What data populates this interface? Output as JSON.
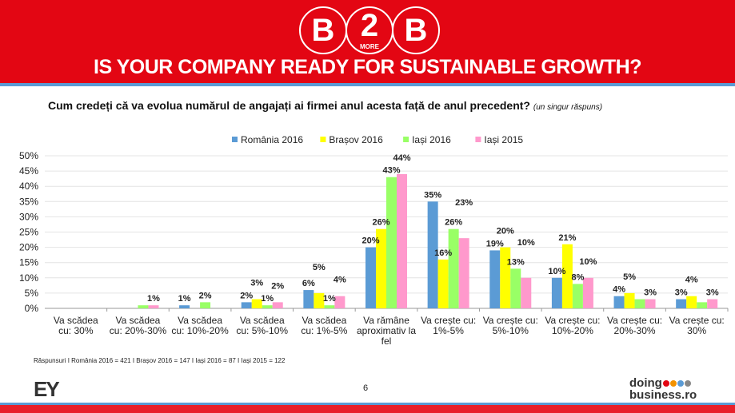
{
  "header": {
    "logo_text": [
      "B",
      "2",
      "B"
    ],
    "logo_small": "MORE",
    "headline": "IS YOUR COMPANY READY FOR SUSTAINABLE GROWTH?"
  },
  "question": "Cum credeți că va evolua numărul de angajați ai firmei anul acesta față de anul precedent?",
  "question_note": "(un singur răspuns)",
  "chart_data": {
    "type": "bar",
    "categories": [
      "Va scădea cu: 30%",
      "Va scădea cu: 20%-30%",
      "Va scădea cu: 10%-20%",
      "Va scădea cu: 5%-10%",
      "Va scădea cu: 1%-5%",
      "Va rămâne aproximativ la fel",
      "Va crește cu: 1%-5%",
      "Va crește cu: 5%-10%",
      "Va crește cu: 10%-20%",
      "Va crește cu: 20%-30%",
      "Va crește cu: 30%"
    ],
    "category_lines": [
      [
        "Va scădea",
        "cu: 30%"
      ],
      [
        "Va scădea",
        "cu: 20%-30%"
      ],
      [
        "Va scădea",
        "cu: 10%-20%"
      ],
      [
        "Va scădea",
        "cu: 5%-10%"
      ],
      [
        "Va scădea",
        "cu: 1%-5%"
      ],
      [
        "Va rămâne",
        "aproximativ la",
        "fel"
      ],
      [
        "Va crește cu:",
        "1%-5%"
      ],
      [
        "Va crește cu:",
        "5%-10%"
      ],
      [
        "Va crește cu:",
        "10%-20%"
      ],
      [
        "Va crește cu:",
        "20%-30%"
      ],
      [
        "Va crește cu:",
        "30%"
      ]
    ],
    "series": [
      {
        "name": "România 2016",
        "color": "#5b9bd5",
        "values": [
          0,
          0,
          1,
          2,
          6,
          20,
          35,
          19,
          10,
          4,
          3
        ],
        "labels": [
          "",
          "",
          "1%",
          "2%",
          "6%",
          "20%",
          "35%",
          "19%",
          "10%",
          "4%",
          "3%"
        ]
      },
      {
        "name": "Brașov 2016",
        "color": "#ffff00",
        "values": [
          0,
          0,
          0,
          3,
          5,
          26,
          16,
          20,
          21,
          5,
          4
        ],
        "labels": [
          "",
          "",
          "",
          "3%",
          "5%",
          "26%",
          "16%",
          "20%",
          "21%",
          "5%",
          "4%"
        ]
      },
      {
        "name": "Iași 2016",
        "color": "#99ff66",
        "values": [
          0,
          1,
          2,
          1,
          1,
          43,
          26,
          13,
          8,
          3,
          2
        ],
        "labels": [
          "",
          "",
          "2%",
          "1%",
          "1%",
          "43%",
          "26%",
          "13%",
          "8%",
          "",
          ""
        ]
      },
      {
        "name": "Iași 2015",
        "color": "#ff99cc",
        "values": [
          0,
          1,
          0,
          2,
          4,
          44,
          23,
          10,
          10,
          3,
          3
        ],
        "labels": [
          "",
          "1%",
          "",
          "2%",
          "4%",
          "44%",
          "23%",
          "10%",
          "10%",
          "3%",
          "3%"
        ]
      }
    ],
    "yticks": [
      "0%",
      "5%",
      "10%",
      "15%",
      "20%",
      "25%",
      "30%",
      "35%",
      "40%",
      "45%",
      "50%"
    ],
    "ylim": [
      0,
      50
    ],
    "grid": true,
    "legend": "top"
  },
  "note": "Răspunsuri I România 2016 = 421 I Brașov 2016 = 147 I Iași 2016 = 87 I Iași 2015 = 122",
  "footer": {
    "ey": "EY",
    "page": "6",
    "db_line1": "doing",
    "db_line2": "business.ro",
    "db_dots": [
      "#e30613",
      "#f39200",
      "#5b9bd5",
      "#888888"
    ]
  }
}
